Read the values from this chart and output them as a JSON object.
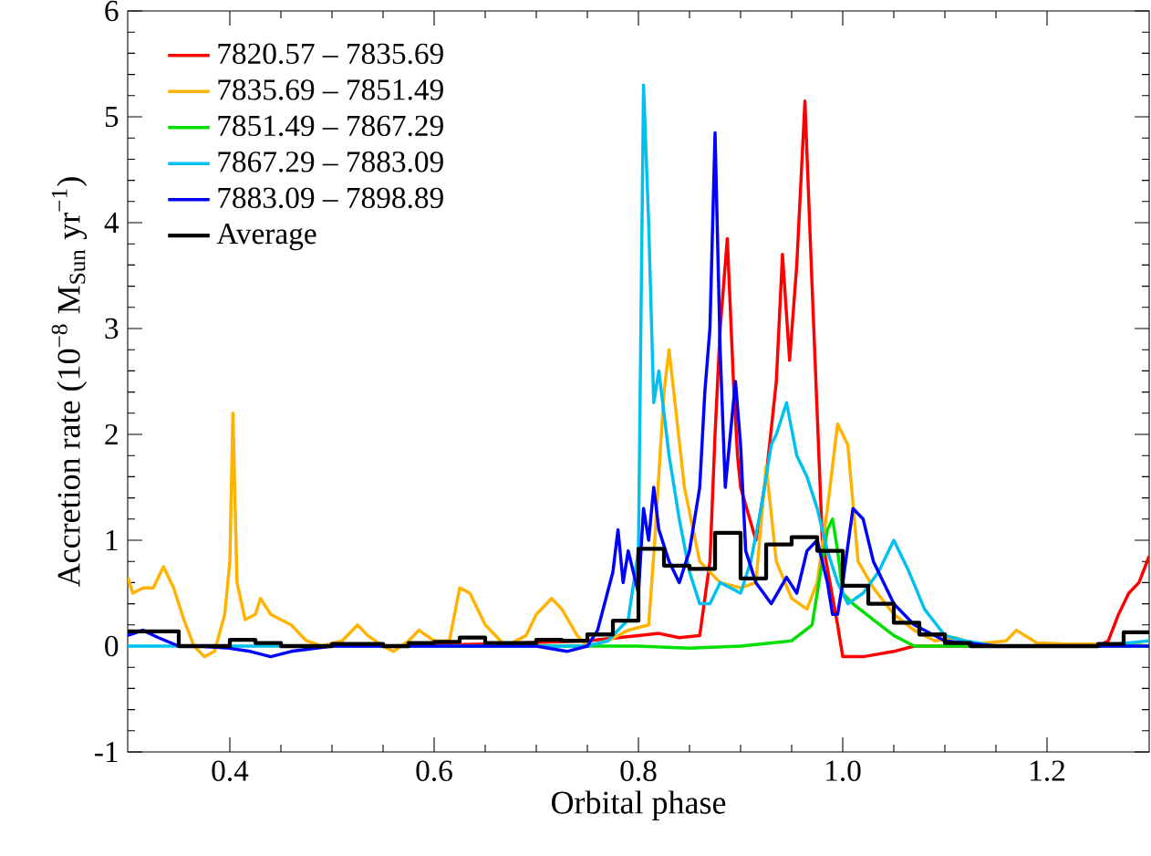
{
  "chart_data": {
    "type": "line",
    "xlabel": "Orbital phase",
    "ylabel": "Accretion rate (10$^{−8}$ M$_{Sun}$ yr$^{−1}$)",
    "xlim": [
      0.3,
      1.3
    ],
    "ylim": [
      -1,
      6
    ],
    "xticks": [
      0.4,
      0.6,
      0.8,
      {
        "value": 1.0,
        "label": "1.0"
      },
      1.2
    ],
    "yticks": [
      -1,
      0,
      1,
      2,
      3,
      4,
      5,
      6
    ],
    "legend": "top left",
    "series": [
      {
        "name": "7820.57 – 7835.69",
        "color": "#ff0000",
        "x": [
          0.45,
          0.55,
          0.65,
          0.75,
          0.78,
          0.8,
          0.82,
          0.84,
          0.86,
          0.87,
          0.875,
          0.88,
          0.887,
          0.893,
          0.897,
          0.9,
          0.915,
          0.925,
          0.935,
          0.941,
          0.948,
          0.955,
          0.963,
          0.97,
          0.98,
          0.995,
          1.0,
          1.02,
          1.05,
          1.07,
          1.1,
          1.15,
          1.2,
          1.25,
          1.26,
          1.27,
          1.28,
          1.29,
          1.3
        ],
        "values": [
          0.0,
          0.0,
          0.02,
          0.05,
          0.08,
          0.1,
          0.12,
          0.08,
          0.1,
          0.8,
          2.0,
          3.0,
          3.85,
          2.5,
          1.8,
          1.5,
          1.0,
          1.6,
          2.5,
          3.7,
          2.7,
          3.6,
          5.15,
          3.4,
          1.0,
          0.2,
          -0.1,
          -0.1,
          -0.05,
          0.0,
          0.0,
          0.0,
          0.0,
          0.0,
          0.05,
          0.3,
          0.5,
          0.6,
          0.85
        ]
      },
      {
        "name": "7835.69 – 7851.49",
        "color": "#ffb300",
        "x": [
          0.3,
          0.305,
          0.315,
          0.325,
          0.335,
          0.345,
          0.355,
          0.365,
          0.375,
          0.385,
          0.395,
          0.4,
          0.403,
          0.407,
          0.415,
          0.425,
          0.43,
          0.44,
          0.46,
          0.475,
          0.49,
          0.51,
          0.525,
          0.535,
          0.55,
          0.56,
          0.575,
          0.585,
          0.6,
          0.615,
          0.625,
          0.635,
          0.65,
          0.67,
          0.69,
          0.7,
          0.715,
          0.725,
          0.74,
          0.75,
          0.77,
          0.79,
          0.81,
          0.816,
          0.825,
          0.83,
          0.845,
          0.86,
          0.88,
          0.9,
          0.915,
          0.925,
          0.935,
          0.95,
          0.965,
          0.975,
          0.985,
          0.995,
          1.005,
          1.015,
          1.03,
          1.05,
          1.07,
          1.09,
          1.11,
          1.13,
          1.16,
          1.17,
          1.19,
          1.22,
          1.25,
          1.28,
          1.3
        ],
        "values": [
          0.65,
          0.5,
          0.55,
          0.55,
          0.75,
          0.55,
          0.25,
          0.0,
          -0.1,
          -0.05,
          0.3,
          0.8,
          2.2,
          0.6,
          0.25,
          0.3,
          0.45,
          0.3,
          0.2,
          0.05,
          0.0,
          0.05,
          0.2,
          0.1,
          0.0,
          -0.05,
          0.05,
          0.15,
          0.05,
          0.05,
          0.55,
          0.5,
          0.2,
          0.0,
          0.1,
          0.3,
          0.45,
          0.35,
          0.1,
          0.0,
          0.05,
          0.15,
          0.2,
          1.0,
          2.4,
          2.8,
          1.5,
          0.8,
          0.6,
          0.55,
          0.6,
          1.7,
          0.8,
          0.45,
          0.35,
          0.6,
          1.3,
          2.1,
          1.9,
          0.8,
          0.55,
          0.3,
          0.15,
          0.05,
          0.08,
          0.02,
          0.05,
          0.15,
          0.03,
          0.02,
          0.02,
          0.02,
          0.0
        ]
      },
      {
        "name": "7851.49 – 7867.29",
        "color": "#00e000",
        "x": [
          0.6,
          0.7,
          0.8,
          0.85,
          0.9,
          0.95,
          0.97,
          0.98,
          0.985,
          0.99,
          0.995,
          1.0,
          1.01,
          1.03,
          1.05,
          1.07,
          1.1,
          1.2,
          1.3
        ],
        "values": [
          0.0,
          0.0,
          0.0,
          -0.02,
          0.0,
          0.05,
          0.2,
          0.8,
          1.1,
          1.2,
          0.9,
          0.5,
          0.4,
          0.25,
          0.1,
          0.0,
          0.0,
          0.0,
          0.0
        ]
      },
      {
        "name": "7867.29 – 7883.09",
        "color": "#00c0f0",
        "x": [
          0.3,
          0.4,
          0.5,
          0.6,
          0.7,
          0.75,
          0.77,
          0.79,
          0.8,
          0.805,
          0.81,
          0.815,
          0.82,
          0.83,
          0.84,
          0.85,
          0.86,
          0.87,
          0.88,
          0.9,
          0.91,
          0.92,
          0.93,
          0.935,
          0.945,
          0.955,
          0.965,
          0.975,
          0.985,
          0.995,
          1.005,
          1.02,
          1.035,
          1.05,
          1.065,
          1.08,
          1.1,
          1.12,
          1.15,
          1.2,
          1.25,
          1.3
        ],
        "values": [
          0.0,
          0.0,
          0.0,
          0.0,
          0.0,
          0.0,
          0.05,
          0.25,
          0.9,
          5.3,
          4.0,
          2.3,
          2.6,
          1.8,
          1.2,
          0.7,
          0.4,
          0.4,
          0.6,
          0.5,
          0.8,
          1.3,
          1.9,
          2.0,
          2.3,
          1.8,
          1.6,
          1.3,
          0.9,
          0.6,
          0.4,
          0.5,
          0.7,
          1.0,
          0.7,
          0.35,
          0.1,
          0.05,
          0.0,
          0.0,
          0.0,
          0.05
        ]
      },
      {
        "name": "7883.09 – 7898.89",
        "color": "#0000ff",
        "x": [
          0.3,
          0.315,
          0.33,
          0.35,
          0.37,
          0.4,
          0.42,
          0.44,
          0.46,
          0.5,
          0.6,
          0.7,
          0.73,
          0.75,
          0.76,
          0.775,
          0.78,
          0.785,
          0.79,
          0.8,
          0.805,
          0.81,
          0.815,
          0.82,
          0.83,
          0.84,
          0.85,
          0.86,
          0.865,
          0.87,
          0.875,
          0.88,
          0.885,
          0.89,
          0.895,
          0.9,
          0.905,
          0.915,
          0.93,
          0.945,
          0.955,
          0.965,
          0.975,
          0.985,
          0.99,
          0.995,
          1.0,
          1.01,
          1.02,
          1.03,
          1.05,
          1.07,
          1.1,
          1.15,
          1.2,
          1.25,
          1.3
        ],
        "values": [
          0.1,
          0.15,
          0.08,
          0.0,
          0.0,
          -0.02,
          -0.05,
          -0.1,
          -0.05,
          0.0,
          0.0,
          0.0,
          -0.05,
          0.0,
          0.15,
          0.7,
          1.1,
          0.6,
          0.9,
          0.5,
          1.3,
          1.0,
          1.5,
          1.1,
          0.8,
          0.6,
          0.9,
          1.5,
          2.4,
          3.0,
          4.85,
          2.8,
          1.5,
          2.0,
          2.5,
          1.9,
          0.9,
          0.6,
          0.4,
          0.65,
          0.5,
          0.9,
          1.0,
          0.6,
          0.3,
          0.3,
          0.6,
          1.3,
          1.2,
          0.8,
          0.4,
          0.2,
          0.05,
          0.0,
          0.0,
          0.0,
          0.0
        ]
      },
      {
        "name": "Average",
        "color": "#000000",
        "type": "step",
        "x": [
          0.3,
          0.325,
          0.35,
          0.375,
          0.4,
          0.425,
          0.45,
          0.475,
          0.5,
          0.525,
          0.55,
          0.575,
          0.6,
          0.625,
          0.65,
          0.675,
          0.7,
          0.725,
          0.75,
          0.775,
          0.8,
          0.825,
          0.85,
          0.875,
          0.9,
          0.925,
          0.95,
          0.975,
          1.0,
          1.025,
          1.05,
          1.075,
          1.1,
          1.125,
          1.15,
          1.175,
          1.2,
          1.225,
          1.25,
          1.275,
          1.3
        ],
        "values": [
          0.14,
          0.14,
          0.0,
          0.0,
          0.06,
          0.03,
          0.0,
          0.0,
          0.02,
          0.02,
          0.0,
          0.03,
          0.04,
          0.08,
          0.03,
          0.03,
          0.06,
          0.05,
          0.11,
          0.24,
          0.92,
          0.76,
          0.73,
          1.07,
          0.64,
          0.96,
          1.03,
          0.9,
          0.57,
          0.4,
          0.22,
          0.11,
          0.03,
          0.0,
          0.0,
          0.0,
          0.0,
          0.0,
          0.02,
          0.13,
          0.13
        ]
      }
    ]
  }
}
